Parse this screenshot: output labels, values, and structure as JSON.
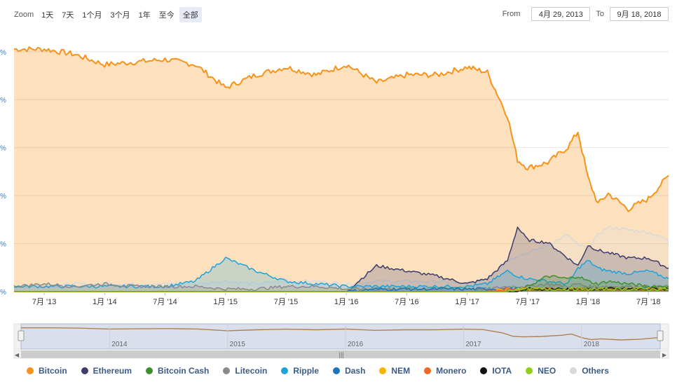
{
  "zoom": {
    "label": "Zoom",
    "buttons": [
      "1天",
      "7天",
      "1个月",
      "3个月",
      "1年",
      "至今",
      "全部"
    ],
    "active_index": 6
  },
  "range": {
    "from_label": "From",
    "from_value": "4月 29, 2013",
    "to_label": "To",
    "to_value": "9月 18, 2018"
  },
  "navigator": {
    "years": [
      "2014",
      "2015",
      "2016",
      "2017",
      "2018"
    ]
  },
  "colors": {
    "grid": "#e6e6e6",
    "navigator_fill": "#cfd8ea",
    "navigator_line": "#b08050",
    "ytick_text": "#3a78c8"
  },
  "chart_data": {
    "type": "area",
    "x_ticks": [
      "7月 '13",
      "1月 '14",
      "7月 '14",
      "1月 '15",
      "7月 '15",
      "1月 '16",
      "7月 '16",
      "1月 '17",
      "7月 '17",
      "1月 '18",
      "7月 '18"
    ],
    "y_tick_labels": [
      "%",
      "%",
      "%",
      "%",
      "%",
      "%"
    ],
    "ylim": [
      0,
      100
    ],
    "x": [
      "2013-04",
      "2013-07",
      "2013-10",
      "2014-01",
      "2014-04",
      "2014-07",
      "2014-10",
      "2015-01",
      "2015-04",
      "2015-07",
      "2015-10",
      "2016-01",
      "2016-04",
      "2016-07",
      "2016-10",
      "2017-01",
      "2017-03",
      "2017-05",
      "2017-06",
      "2017-07",
      "2017-09",
      "2017-11",
      "2017-12",
      "2018-01",
      "2018-02",
      "2018-03",
      "2018-05",
      "2018-07",
      "2018-09"
    ],
    "series": [
      {
        "name": "Bitcoin",
        "color": "#f7931a",
        "values": [
          94,
          94,
          92,
          88,
          89,
          90,
          88,
          79,
          84,
          87,
          84,
          88,
          81,
          84,
          84,
          87,
          85,
          68,
          51,
          48,
          50,
          56,
          62,
          44,
          34,
          38,
          32,
          36,
          45
        ]
      },
      {
        "name": "Ethereum",
        "color": "#3c3c6e",
        "values": [
          0,
          0,
          0,
          0,
          0,
          0,
          0,
          0,
          0,
          0,
          0,
          0,
          10,
          8,
          6,
          3,
          5,
          12,
          25,
          20,
          19,
          13,
          10,
          18,
          16,
          15,
          13,
          13,
          9
        ]
      },
      {
        "name": "Bitcoin Cash",
        "color": "#3f8f2c",
        "values": [
          0,
          0,
          0,
          0,
          0,
          0,
          0,
          0,
          0,
          0,
          0,
          0,
          0,
          0,
          0,
          0,
          0,
          0,
          0,
          2,
          6,
          5,
          6,
          4,
          3,
          4,
          3,
          2,
          2
        ]
      },
      {
        "name": "Litecoin",
        "color": "#8a8a8a",
        "values": [
          2,
          3,
          2,
          3,
          2,
          2,
          2,
          1,
          1,
          2,
          2,
          1,
          1,
          1,
          1,
          1,
          1,
          2,
          2,
          2,
          3,
          2,
          3,
          2,
          2,
          2,
          2,
          2,
          2
        ]
      },
      {
        "name": "Ripple",
        "color": "#1ca3dc",
        "values": [
          2,
          2,
          2,
          2,
          2,
          2,
          4,
          13,
          8,
          4,
          3,
          2,
          2,
          2,
          2,
          2,
          3,
          8,
          6,
          5,
          4,
          3,
          9,
          12,
          9,
          8,
          7,
          8,
          5
        ]
      },
      {
        "name": "Dash",
        "color": "#1c75bc",
        "values": [
          0,
          0,
          0,
          0,
          0,
          0,
          0,
          0,
          0,
          0,
          0,
          0,
          1,
          1,
          1,
          1,
          1,
          1,
          1,
          1,
          1,
          1,
          1,
          1,
          1,
          1,
          1,
          1,
          1
        ]
      },
      {
        "name": "NEM",
        "color": "#f4b400",
        "values": [
          0,
          0,
          0,
          0,
          0,
          0,
          0,
          0,
          0,
          0,
          0,
          0,
          0,
          0,
          0,
          0,
          0,
          1,
          1,
          1,
          1,
          1,
          1,
          1,
          1,
          1,
          1,
          1,
          1
        ]
      },
      {
        "name": "Monero",
        "color": "#f26822",
        "values": [
          0,
          0,
          0,
          0,
          0,
          0,
          0,
          0,
          0,
          0,
          0,
          0,
          0,
          0,
          0,
          0,
          0,
          1,
          1,
          1,
          1,
          1,
          1,
          1,
          1,
          1,
          1,
          1,
          1
        ]
      },
      {
        "name": "IOTA",
        "color": "#111111",
        "values": [
          0,
          0,
          0,
          0,
          0,
          0,
          0,
          0,
          0,
          0,
          0,
          0,
          0,
          0,
          0,
          0,
          0,
          0,
          0,
          1,
          1,
          1,
          1,
          1,
          1,
          1,
          1,
          1,
          1
        ]
      },
      {
        "name": "NEO",
        "color": "#8fce1c",
        "values": [
          0,
          0,
          0,
          0,
          0,
          0,
          0,
          0,
          0,
          0,
          0,
          0,
          0,
          0,
          0,
          0,
          0,
          0,
          1,
          1,
          1,
          1,
          1,
          1,
          1,
          1,
          1,
          1,
          1
        ]
      },
      {
        "name": "Others",
        "color": "#d9d9d9",
        "values": [
          2,
          2,
          3,
          3,
          3,
          3,
          3,
          4,
          3,
          4,
          4,
          3,
          4,
          4,
          4,
          3,
          5,
          12,
          14,
          15,
          18,
          22,
          18,
          17,
          22,
          25,
          24,
          23,
          20
        ]
      }
    ]
  }
}
